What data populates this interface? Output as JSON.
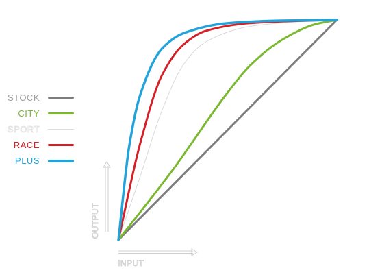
{
  "chart_data": {
    "type": "line",
    "xlabel": "INPUT",
    "ylabel": "OUTPUT",
    "xlim": [
      0,
      1
    ],
    "ylim": [
      0,
      1
    ],
    "grid": false,
    "legend_position": "left",
    "series": [
      {
        "name": "STOCK",
        "color": "#7d7d7d",
        "x": [
          0,
          0.25,
          0.5,
          0.75,
          1
        ],
        "y": [
          0,
          0.25,
          0.5,
          0.75,
          1
        ]
      },
      {
        "name": "CITY",
        "color": "#7ab82f",
        "x": [
          0,
          0.25,
          0.5,
          0.6,
          0.75,
          0.9,
          1
        ],
        "y": [
          0,
          0.32,
          0.67,
          0.79,
          0.91,
          0.98,
          1
        ]
      },
      {
        "name": "SPORT",
        "color": "#d8d8d8",
        "x": [
          0,
          0.1,
          0.2,
          0.3,
          0.4,
          0.6,
          0.8,
          1
        ],
        "y": [
          0,
          0.29,
          0.59,
          0.8,
          0.9,
          0.97,
          0.99,
          1
        ]
      },
      {
        "name": "RACE",
        "color": "#d42127",
        "x": [
          0,
          0.1,
          0.2,
          0.3,
          0.4,
          0.6,
          0.8,
          1
        ],
        "y": [
          0,
          0.44,
          0.75,
          0.89,
          0.95,
          0.985,
          0.995,
          1
        ]
      },
      {
        "name": "PLUS",
        "color": "#24a3da",
        "x": [
          0,
          0.05,
          0.1,
          0.2,
          0.3,
          0.5,
          0.75,
          1
        ],
        "y": [
          0,
          0.43,
          0.66,
          0.87,
          0.94,
          0.985,
          0.997,
          1
        ]
      }
    ]
  },
  "legend": {
    "items": [
      {
        "label": "STOCK",
        "color": "#7d7d7d"
      },
      {
        "label": "CITY",
        "color": "#7ab82f"
      },
      {
        "label": "SPORT",
        "color": "#d8d8d8"
      },
      {
        "label": "RACE",
        "color": "#d42127"
      },
      {
        "label": "PLUS",
        "color": "#24a3da"
      }
    ]
  },
  "axes": {
    "x_label": "INPUT",
    "y_label": "OUTPUT"
  }
}
